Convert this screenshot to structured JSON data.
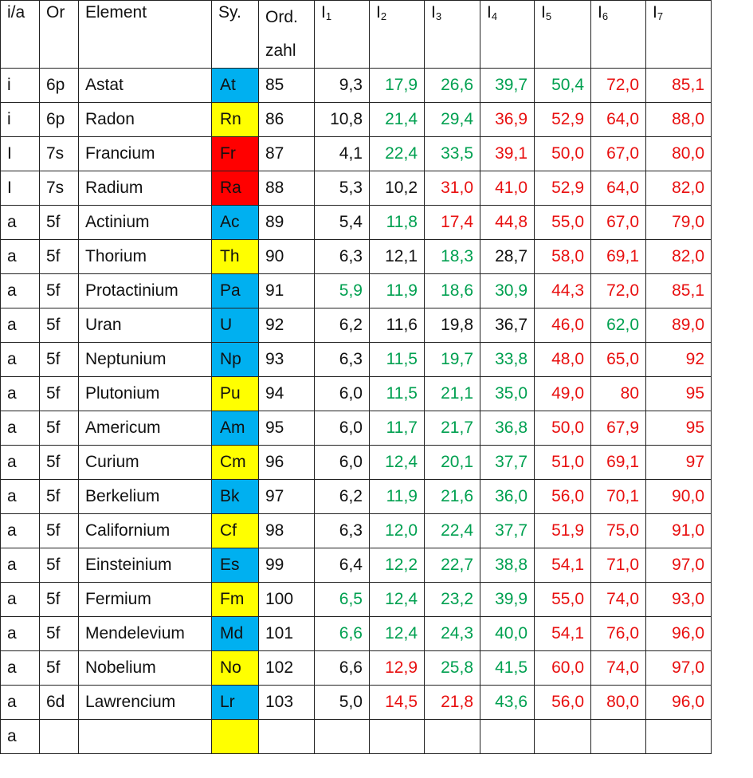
{
  "headers": {
    "ia": "i/a",
    "or": "Or",
    "element": "Element",
    "sy": "Sy.",
    "ord_line1": "Ord.",
    "ord_line2": "zahl",
    "i_label": "I",
    "i_subs": [
      "1",
      "2",
      "3",
      "4",
      "5",
      "6",
      "7"
    ]
  },
  "colors": {
    "blue": "#00b0f0",
    "yellow": "#ffff00",
    "red": "#ff0000",
    "green_text": "#00a050",
    "red_text": "#e81010",
    "black_text": "#111111"
  },
  "rows": [
    {
      "ia": "i",
      "or": "6p",
      "element": "Astat",
      "sy": "At",
      "sy_bg": "blue",
      "z": "85",
      "ions": [
        {
          "v": "9,3",
          "c": "black"
        },
        {
          "v": "17,9",
          "c": "green"
        },
        {
          "v": "26,6",
          "c": "green"
        },
        {
          "v": "39,7",
          "c": "green"
        },
        {
          "v": "50,4",
          "c": "green"
        },
        {
          "v": "72,0",
          "c": "red"
        },
        {
          "v": "85,1",
          "c": "red"
        }
      ]
    },
    {
      "ia": "i",
      "or": "6p",
      "element": "Radon",
      "sy": "Rn",
      "sy_bg": "yellow",
      "z": "86",
      "ions": [
        {
          "v": "10,8",
          "c": "black"
        },
        {
          "v": "21,4",
          "c": "green"
        },
        {
          "v": "29,4",
          "c": "green"
        },
        {
          "v": "36,9",
          "c": "red"
        },
        {
          "v": "52,9",
          "c": "red"
        },
        {
          "v": "64,0",
          "c": "red"
        },
        {
          "v": "88,0",
          "c": "red"
        }
      ]
    },
    {
      "ia": "I",
      "or": "7s",
      "element": "Francium",
      "sy": "Fr",
      "sy_bg": "red",
      "z": "87",
      "ions": [
        {
          "v": "4,1",
          "c": "black"
        },
        {
          "v": "22,4",
          "c": "green"
        },
        {
          "v": "33,5",
          "c": "green"
        },
        {
          "v": "39,1",
          "c": "red"
        },
        {
          "v": "50,0",
          "c": "red"
        },
        {
          "v": "67,0",
          "c": "red"
        },
        {
          "v": "80,0",
          "c": "red"
        }
      ]
    },
    {
      "ia": "I",
      "or": "7s",
      "element": "Radium",
      "sy": "Ra",
      "sy_bg": "red",
      "z": "88",
      "ions": [
        {
          "v": "5,3",
          "c": "black"
        },
        {
          "v": "10,2",
          "c": "black"
        },
        {
          "v": "31,0",
          "c": "red"
        },
        {
          "v": "41,0",
          "c": "red"
        },
        {
          "v": "52,9",
          "c": "red"
        },
        {
          "v": "64,0",
          "c": "red"
        },
        {
          "v": "82,0",
          "c": "red"
        }
      ]
    },
    {
      "ia": "a",
      "or": "5f",
      "element": "Actinium",
      "sy": "Ac",
      "sy_bg": "blue",
      "z": "89",
      "ions": [
        {
          "v": "5,4",
          "c": "black"
        },
        {
          "v": "11,8",
          "c": "green"
        },
        {
          "v": "17,4",
          "c": "red"
        },
        {
          "v": "44,8",
          "c": "red"
        },
        {
          "v": "55,0",
          "c": "red"
        },
        {
          "v": "67,0",
          "c": "red"
        },
        {
          "v": "79,0",
          "c": "red"
        }
      ]
    },
    {
      "ia": "a",
      "or": "5f",
      "element": "Thorium",
      "sy": "Th",
      "sy_bg": "yellow",
      "z": "90",
      "ions": [
        {
          "v": "6,3",
          "c": "black"
        },
        {
          "v": "12,1",
          "c": "black"
        },
        {
          "v": "18,3",
          "c": "green"
        },
        {
          "v": "28,7",
          "c": "black"
        },
        {
          "v": "58,0",
          "c": "red"
        },
        {
          "v": "69,1",
          "c": "red"
        },
        {
          "v": "82,0",
          "c": "red"
        }
      ]
    },
    {
      "ia": "a",
      "or": "5f",
      "element": "Protactinium",
      "sy": "Pa",
      "sy_bg": "blue",
      "z": "91",
      "ions": [
        {
          "v": "5,9",
          "c": "green"
        },
        {
          "v": "11,9",
          "c": "green"
        },
        {
          "v": "18,6",
          "c": "green"
        },
        {
          "v": "30,9",
          "c": "green"
        },
        {
          "v": "44,3",
          "c": "red"
        },
        {
          "v": "72,0",
          "c": "red"
        },
        {
          "v": "85,1",
          "c": "red"
        }
      ]
    },
    {
      "ia": "a",
      "or": "5f",
      "element": "Uran",
      "sy": "U",
      "sy_bg": "blue",
      "z": "92",
      "ions": [
        {
          "v": "6,2",
          "c": "black"
        },
        {
          "v": "11,6",
          "c": "black"
        },
        {
          "v": "19,8",
          "c": "black"
        },
        {
          "v": "36,7",
          "c": "black"
        },
        {
          "v": "46,0",
          "c": "red"
        },
        {
          "v": "62,0",
          "c": "green"
        },
        {
          "v": "89,0",
          "c": "red"
        }
      ]
    },
    {
      "ia": "a",
      "or": "5f",
      "element": "Neptunium",
      "sy": "Np",
      "sy_bg": "blue",
      "z": "93",
      "ions": [
        {
          "v": "6,3",
          "c": "black"
        },
        {
          "v": "11,5",
          "c": "green"
        },
        {
          "v": "19,7",
          "c": "green"
        },
        {
          "v": "33,8",
          "c": "green"
        },
        {
          "v": "48,0",
          "c": "red"
        },
        {
          "v": "65,0",
          "c": "red"
        },
        {
          "v": "92",
          "c": "red"
        }
      ]
    },
    {
      "ia": "a",
      "or": "5f",
      "element": "Plutonium",
      "sy": "Pu",
      "sy_bg": "yellow",
      "z": "94",
      "ions": [
        {
          "v": "6,0",
          "c": "black"
        },
        {
          "v": "11,5",
          "c": "green"
        },
        {
          "v": "21,1",
          "c": "green"
        },
        {
          "v": "35,0",
          "c": "green"
        },
        {
          "v": "49,0",
          "c": "red"
        },
        {
          "v": "80",
          "c": "red"
        },
        {
          "v": "95",
          "c": "red"
        }
      ]
    },
    {
      "ia": "a",
      "or": "5f",
      "element": "Americum",
      "sy": "Am",
      "sy_bg": "blue",
      "z": "95",
      "ions": [
        {
          "v": "6,0",
          "c": "black"
        },
        {
          "v": "11,7",
          "c": "green"
        },
        {
          "v": "21,7",
          "c": "green"
        },
        {
          "v": "36,8",
          "c": "green"
        },
        {
          "v": "50,0",
          "c": "red"
        },
        {
          "v": "67,9",
          "c": "red"
        },
        {
          "v": "95",
          "c": "red"
        }
      ]
    },
    {
      "ia": "a",
      "or": "5f",
      "element": "Curium",
      "sy": "Cm",
      "sy_bg": "yellow",
      "z": "96",
      "ions": [
        {
          "v": "6,0",
          "c": "black"
        },
        {
          "v": "12,4",
          "c": "green"
        },
        {
          "v": "20,1",
          "c": "green"
        },
        {
          "v": "37,7",
          "c": "green"
        },
        {
          "v": "51,0",
          "c": "red"
        },
        {
          "v": "69,1",
          "c": "red"
        },
        {
          "v": "97",
          "c": "red"
        }
      ]
    },
    {
      "ia": "a",
      "or": "5f",
      "element": "Berkelium",
      "sy": "Bk",
      "sy_bg": "blue",
      "z": "97",
      "ions": [
        {
          "v": "6,2",
          "c": "black"
        },
        {
          "v": "11,9",
          "c": "green"
        },
        {
          "v": "21,6",
          "c": "green"
        },
        {
          "v": "36,0",
          "c": "green"
        },
        {
          "v": "56,0",
          "c": "red"
        },
        {
          "v": "70,1",
          "c": "red"
        },
        {
          "v": "90,0",
          "c": "red"
        }
      ]
    },
    {
      "ia": "a",
      "or": "5f",
      "element": "Californium",
      "sy": "Cf",
      "sy_bg": "yellow",
      "z": "98",
      "ions": [
        {
          "v": "6,3",
          "c": "black"
        },
        {
          "v": "12,0",
          "c": "green"
        },
        {
          "v": "22,4",
          "c": "green"
        },
        {
          "v": "37,7",
          "c": "green"
        },
        {
          "v": "51,9",
          "c": "red"
        },
        {
          "v": "75,0",
          "c": "red"
        },
        {
          "v": "91,0",
          "c": "red"
        }
      ]
    },
    {
      "ia": "a",
      "or": "5f",
      "element": "Einsteinium",
      "sy": "Es",
      "sy_bg": "blue",
      "z": "99",
      "ions": [
        {
          "v": "6,4",
          "c": "black"
        },
        {
          "v": "12,2",
          "c": "green"
        },
        {
          "v": "22,7",
          "c": "green"
        },
        {
          "v": "38,8",
          "c": "green"
        },
        {
          "v": "54,1",
          "c": "red"
        },
        {
          "v": "71,0",
          "c": "red"
        },
        {
          "v": "97,0",
          "c": "red"
        }
      ]
    },
    {
      "ia": "a",
      "or": "5f",
      "element": "Fermium",
      "sy": "Fm",
      "sy_bg": "yellow",
      "z": "100",
      "ions": [
        {
          "v": "6,5",
          "c": "green"
        },
        {
          "v": "12,4",
          "c": "green"
        },
        {
          "v": "23,2",
          "c": "green"
        },
        {
          "v": "39,9",
          "c": "green"
        },
        {
          "v": "55,0",
          "c": "red"
        },
        {
          "v": "74,0",
          "c": "red"
        },
        {
          "v": "93,0",
          "c": "red"
        }
      ]
    },
    {
      "ia": "a",
      "or": "5f",
      "element": "Mendelevium",
      "sy": "Md",
      "sy_bg": "blue",
      "z": "101",
      "ions": [
        {
          "v": "6,6",
          "c": "green"
        },
        {
          "v": "12,4",
          "c": "green"
        },
        {
          "v": "24,3",
          "c": "green"
        },
        {
          "v": "40,0",
          "c": "green"
        },
        {
          "v": "54,1",
          "c": "red"
        },
        {
          "v": "76,0",
          "c": "red"
        },
        {
          "v": "96,0",
          "c": "red"
        }
      ]
    },
    {
      "ia": "a",
      "or": "5f",
      "element": "Nobelium",
      "sy": "No",
      "sy_bg": "yellow",
      "z": "102",
      "ions": [
        {
          "v": "6,6",
          "c": "black"
        },
        {
          "v": "12,9",
          "c": "red"
        },
        {
          "v": "25,8",
          "c": "green"
        },
        {
          "v": "41,5",
          "c": "green"
        },
        {
          "v": "60,0",
          "c": "red"
        },
        {
          "v": "74,0",
          "c": "red"
        },
        {
          "v": "97,0",
          "c": "red"
        }
      ]
    },
    {
      "ia": "a",
      "or": "6d",
      "element": "Lawrencium",
      "sy": "Lr",
      "sy_bg": "blue",
      "z": "103",
      "ions": [
        {
          "v": "5,0",
          "c": "black"
        },
        {
          "v": "14,5",
          "c": "red"
        },
        {
          "v": "21,8",
          "c": "red"
        },
        {
          "v": "43,6",
          "c": "green"
        },
        {
          "v": "56,0",
          "c": "red"
        },
        {
          "v": "80,0",
          "c": "red"
        },
        {
          "v": "96,0",
          "c": "red"
        }
      ]
    },
    {
      "ia": "a",
      "or": "",
      "element": "",
      "sy": "",
      "sy_bg": "yellow",
      "z": "",
      "ions": [
        {
          "v": "",
          "c": "black"
        },
        {
          "v": "",
          "c": "black"
        },
        {
          "v": "",
          "c": "black"
        },
        {
          "v": "",
          "c": "black"
        },
        {
          "v": "",
          "c": "black"
        },
        {
          "v": "",
          "c": "black"
        },
        {
          "v": "",
          "c": "black"
        }
      ]
    }
  ]
}
